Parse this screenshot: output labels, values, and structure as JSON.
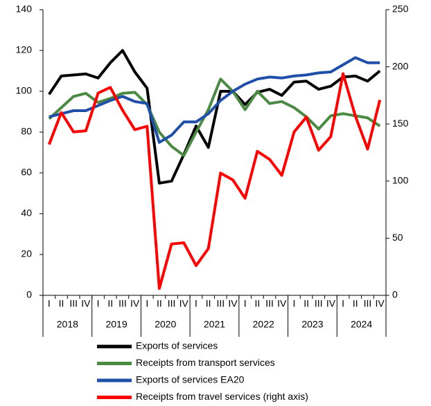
{
  "chart_data": {
    "type": "line",
    "categories": [
      "I",
      "II",
      "III",
      "IV",
      "I",
      "II",
      "III",
      "IV",
      "I",
      "II",
      "III",
      "IV",
      "I",
      "II",
      "III",
      "IV",
      "I",
      "II",
      "III",
      "IV",
      "I",
      "II",
      "III",
      "IV",
      "I",
      "II",
      "III",
      "IV"
    ],
    "years": [
      "2018",
      "2019",
      "2020",
      "2021",
      "2022",
      "2023",
      "2024"
    ],
    "ylim": [
      0,
      140
    ],
    "yticks": [
      0,
      20,
      40,
      60,
      80,
      100,
      120,
      140
    ],
    "y2lim": [
      0,
      250
    ],
    "y2ticks": [
      0,
      50,
      100,
      150,
      200,
      250
    ],
    "series": [
      {
        "name": "Exports of services",
        "color": "#000000",
        "values": [
          98.5,
          107.5,
          108,
          108.5,
          106.5,
          114,
          120,
          109.5,
          101.5,
          55,
          56,
          69,
          83,
          72.5,
          100,
          100,
          93.5,
          99.5,
          101,
          98,
          104.5,
          105,
          101,
          102.5,
          107,
          107.5,
          105,
          110
        ]
      },
      {
        "name": "Receipts from transport services",
        "color": "#4a8a43",
        "values": [
          86.5,
          92,
          97.5,
          99,
          94.5,
          96.5,
          99,
          99.5,
          93.5,
          80,
          73,
          68.5,
          80,
          91,
          106,
          100,
          91,
          100,
          94,
          95,
          92,
          87.5,
          81.5,
          88,
          89,
          88,
          87,
          83
        ]
      },
      {
        "name": "Exports of services EA20",
        "color": "#1f4fa8",
        "values": [
          87.5,
          89,
          90.5,
          90.5,
          93,
          95.5,
          97.5,
          95,
          94,
          75,
          78.5,
          85,
          85,
          89,
          95.5,
          100,
          103.5,
          106,
          107,
          106.5,
          107.5,
          108,
          109,
          109.5,
          113,
          116.5,
          114,
          114
        ]
      },
      {
        "name": "Receipts from travel services (right axis)",
        "color": "#ff0000",
        "axis": "y2",
        "values": [
          132,
          160,
          143,
          144,
          177,
          182,
          162,
          145,
          148,
          6,
          45,
          46,
          26,
          41,
          107,
          101,
          85,
          126,
          119,
          105,
          143,
          156,
          127,
          139,
          194,
          157,
          128,
          171
        ]
      }
    ]
  }
}
